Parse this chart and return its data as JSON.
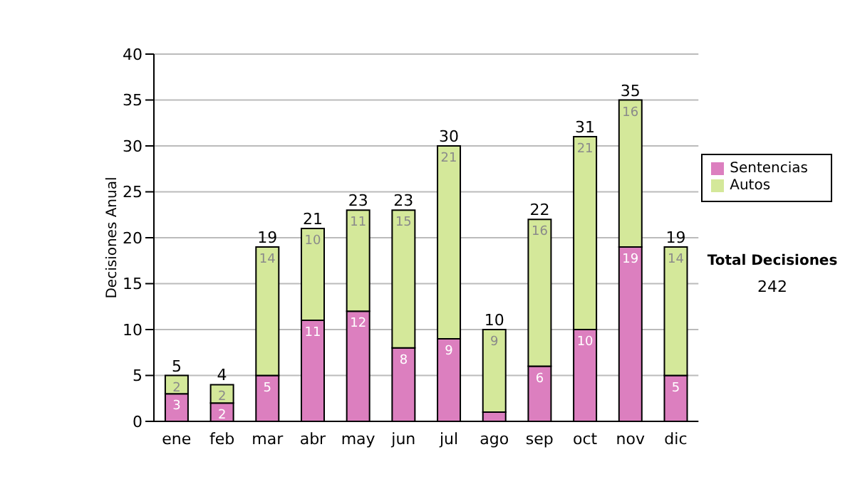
{
  "chart_data": {
    "type": "bar",
    "stacked": true,
    "ylabel": "Decisiones Anual",
    "categories": [
      "ene",
      "feb",
      "mar",
      "abr",
      "may",
      "jun",
      "jul",
      "ago",
      "sep",
      "oct",
      "nov",
      "dic"
    ],
    "series": [
      {
        "name": "Sentencias",
        "color": "#dc7fbf",
        "values": [
          3,
          2,
          5,
          11,
          12,
          8,
          9,
          1,
          6,
          10,
          19,
          5
        ],
        "value_labels": [
          "3",
          "2",
          "5",
          "11",
          "12",
          "8",
          "9",
          null,
          "6",
          "10",
          "19",
          "5"
        ]
      },
      {
        "name": "Autos",
        "color": "#d4e89a",
        "values": [
          2,
          2,
          14,
          10,
          11,
          15,
          21,
          9,
          16,
          21,
          16,
          14
        ],
        "value_labels": [
          "2",
          "2",
          "14",
          "10",
          "11",
          "15",
          "21",
          "9",
          "16",
          "21",
          "16",
          "14"
        ]
      }
    ],
    "totals": [
      "5",
      "4",
      "19",
      "21",
      "23",
      "23",
      "30",
      "10",
      "22",
      "31",
      "35",
      "19"
    ],
    "ylim": [
      0,
      40
    ],
    "yticks": [
      0,
      5,
      10,
      15,
      20,
      25,
      30,
      35,
      40
    ],
    "grid": "y",
    "legend": "right",
    "annotations": [
      "Total Decisiones",
      "242"
    ]
  }
}
